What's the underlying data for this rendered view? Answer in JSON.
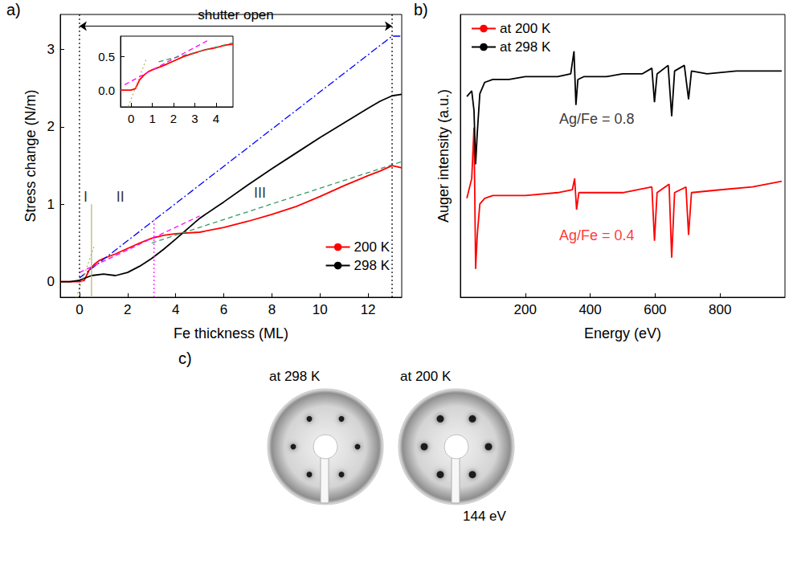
{
  "chart_data": [
    {
      "type": "line",
      "label": "a)",
      "x_label": "Fe thickness (ML)",
      "y_label": "Stress change (N/m)",
      "xlim": [
        -0.8,
        13.4
      ],
      "xticks": [
        0,
        2,
        4,
        6,
        8,
        10,
        12
      ],
      "ylim": [
        -0.2,
        3.45
      ],
      "yticks": [
        0,
        1,
        2,
        3
      ],
      "legend": "lower right",
      "series": [
        {
          "name": "200 K",
          "color": "#ff0000",
          "x": [
            -0.8,
            -0.4,
            0,
            0.2,
            0.4,
            0.6,
            0.8,
            1,
            1.5,
            2,
            2.5,
            3,
            3.5,
            4,
            5,
            6,
            7,
            8,
            9,
            10,
            11,
            12,
            12.5,
            13,
            13.4
          ],
          "values": [
            0,
            0,
            0,
            0.02,
            0.15,
            0.22,
            0.27,
            0.3,
            0.36,
            0.43,
            0.5,
            0.56,
            0.6,
            0.62,
            0.64,
            0.7,
            0.78,
            0.87,
            0.97,
            1.1,
            1.24,
            1.37,
            1.43,
            1.5,
            1.47
          ]
        },
        {
          "name": "298 K",
          "color": "#000000",
          "x": [
            -0.8,
            -0.4,
            0,
            0.5,
            1,
            1.5,
            2,
            2.5,
            3,
            3.5,
            4,
            5,
            6,
            7,
            8,
            9,
            10,
            11,
            12,
            12.5,
            13,
            13.4
          ],
          "values": [
            0,
            0,
            0.02,
            0.08,
            0.1,
            0.08,
            0.12,
            0.2,
            0.3,
            0.42,
            0.55,
            0.82,
            1.03,
            1.25,
            1.46,
            1.66,
            1.86,
            2.05,
            2.24,
            2.33,
            2.4,
            2.42
          ]
        }
      ],
      "fit_lines": [
        {
          "color": "#0000ff",
          "line_style": "dashdot",
          "x": [
            0,
            13,
            13.4
          ],
          "values": [
            0.05,
            3.17,
            3.17
          ]
        },
        {
          "color": "#b5b56a",
          "line_style": "dotted",
          "x": [
            -0.3,
            0.6
          ],
          "values": [
            -0.35,
            0.45
          ]
        },
        {
          "color": "#ff00ff",
          "line_style": "dashed",
          "x": [
            0,
            5
          ],
          "values": [
            0.12,
            0.85
          ]
        },
        {
          "color": "#339966",
          "line_style": "dashed",
          "x": [
            3,
            13.4
          ],
          "values": [
            0.5,
            1.55
          ]
        }
      ],
      "vlines": [
        {
          "x": 0,
          "y": [
            -0.2,
            3.45
          ],
          "color": "#000000",
          "line_style": "dotted"
        },
        {
          "x": 13,
          "y": [
            -0.2,
            3.45
          ],
          "color": "#000000",
          "line_style": "dotted"
        },
        {
          "x": 0.5,
          "y": [
            -0.2,
            1.0
          ],
          "color": "#b5b56a",
          "line_style": "solid"
        },
        {
          "x": 3.1,
          "y": [
            -0.2,
            0.8
          ],
          "color": "#ff00ff",
          "line_style": "dotted"
        }
      ],
      "arrow": {
        "text": "shutter open",
        "x": [
          0,
          13
        ],
        "y": 3.3
      },
      "annotations": [
        {
          "text": "I",
          "x": 0.25,
          "y": 1.1
        },
        {
          "text": "II",
          "x": 1.7,
          "y": 1.1
        },
        {
          "text": "III",
          "x": 7.5,
          "y": 1.15
        }
      ]
    },
    {
      "type": "line",
      "xlim": [
        -0.5,
        4.8
      ],
      "xticks": [
        0,
        1,
        2,
        3,
        4
      ],
      "ylim": [
        -0.25,
        0.8
      ],
      "yticks": [
        {
          "value": 0,
          "label": "0.0"
        },
        0.5
      ],
      "series": [
        {
          "color": "#ff0000",
          "x": [
            -0.5,
            -0.2,
            0,
            0.2,
            0.4,
            0.6,
            0.8,
            1,
            1.5,
            2,
            2.5,
            3,
            3.5,
            4,
            4.5,
            4.8
          ],
          "values": [
            0,
            0,
            0,
            0.02,
            0.15,
            0.22,
            0.27,
            0.3,
            0.36,
            0.43,
            0.5,
            0.55,
            0.6,
            0.63,
            0.67,
            0.68
          ]
        }
      ],
      "fit_lines": [
        {
          "color": "#b5b56a",
          "line_style": "dotted",
          "x": [
            -0.2,
            0.7
          ],
          "values": [
            -0.3,
            0.45
          ]
        },
        {
          "color": "#ff00ff",
          "line_style": "dashed",
          "x": [
            -0.3,
            3.7
          ],
          "values": [
            0.08,
            0.75
          ]
        },
        {
          "color": "#339966",
          "line_style": "dashed",
          "x": [
            1.3,
            4.8
          ],
          "values": [
            0.42,
            0.7
          ]
        }
      ]
    },
    {
      "type": "line",
      "label": "b)",
      "x_label": "Energy (eV)",
      "y_label": "Auger intensity (a.u.)",
      "xlim": [
        0,
        1000
      ],
      "xticks": [
        200,
        400,
        600,
        800
      ],
      "ylim": [
        0,
        1
      ],
      "tick_labels": "x",
      "legend": "upper left",
      "series": [
        {
          "name": "at 200 K",
          "color": "#ff0000",
          "x": [
            20,
            35,
            42,
            47,
            52,
            60,
            75,
            100,
            200,
            300,
            345,
            352,
            358,
            365,
            400,
            500,
            590,
            598,
            606,
            643,
            651,
            660,
            695,
            703,
            712,
            800,
            900,
            990
          ],
          "values": [
            0.35,
            0.42,
            0.6,
            0.1,
            0.22,
            0.33,
            0.35,
            0.36,
            0.36,
            0.37,
            0.38,
            0.42,
            0.31,
            0.37,
            0.37,
            0.37,
            0.39,
            0.2,
            0.37,
            0.4,
            0.14,
            0.37,
            0.39,
            0.22,
            0.37,
            0.38,
            0.39,
            0.41
          ]
        },
        {
          "name": "at 298 K",
          "color": "#000000",
          "x": [
            20,
            35,
            42,
            47,
            52,
            60,
            75,
            100,
            150,
            200,
            250,
            300,
            340,
            350,
            356,
            362,
            380,
            450,
            500,
            560,
            590,
            598,
            606,
            640,
            651,
            660,
            690,
            703,
            712,
            760,
            850,
            950,
            990
          ],
          "values": [
            0.71,
            0.73,
            0.66,
            0.47,
            0.58,
            0.72,
            0.76,
            0.77,
            0.77,
            0.78,
            0.78,
            0.78,
            0.79,
            0.87,
            0.68,
            0.77,
            0.78,
            0.78,
            0.79,
            0.79,
            0.81,
            0.69,
            0.79,
            0.82,
            0.64,
            0.8,
            0.82,
            0.7,
            0.8,
            0.79,
            0.8,
            0.8,
            0.8
          ]
        }
      ],
      "annotations": [
        {
          "text": "Ag/Fe = 0.8",
          "x": 420,
          "y": 0.63,
          "color": "#000000"
        },
        {
          "text": "Ag/Fe = 0.4",
          "x": 420,
          "y": 0.22,
          "color": "#ff0000"
        }
      ]
    }
  ],
  "leed": {
    "label": "c)",
    "images": [
      {
        "caption": "at 298 K"
      },
      {
        "caption": "at 200 K"
      }
    ],
    "energy": "144 eV"
  }
}
